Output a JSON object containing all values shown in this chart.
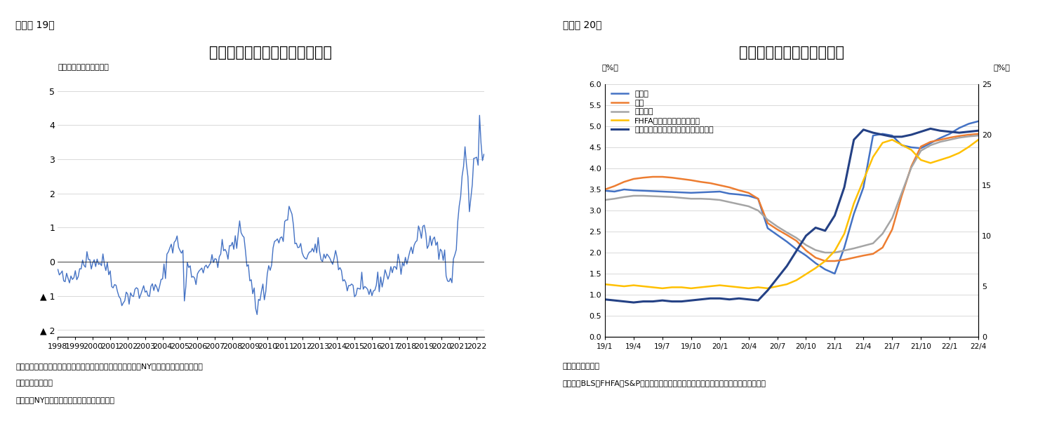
{
  "fig19": {
    "title": "世界サプライチェーン圧力指数",
    "ylabel": "（平均からの標準偏差）",
    "note1": "（注）世界の輸送コストおよび購買担当者景気指数などからNY連銀が推計した供給制約",
    "note2": "　　を図る指数。",
    "note3": "（資料）NY連銀よりニッセイ基礎研究所作成",
    "ylim": [
      -2.2,
      5.2
    ],
    "yticks": [
      -2,
      -1,
      0,
      1,
      2,
      3,
      4,
      5
    ],
    "ytick_labels": [
      "▲ 2",
      "▲ 1",
      "0",
      "1",
      "2",
      "3",
      "4",
      "5"
    ],
    "xtick_years": [
      1998,
      2000,
      2002,
      2004,
      2006,
      2008,
      2010,
      2012,
      2014,
      2016,
      2018,
      2020,
      2022
    ],
    "line_color": "#4472C4",
    "line_width": 1.0
  },
  "fig20": {
    "title": "住居費および住宅価格指数",
    "ylabel_left": "（%）",
    "ylabel_right": "（%）",
    "note1": "（注）前年同月比",
    "note2": "（資料）BLS、FHFA、S&Pダウジョーンズ・インデックスよりニッセイ基礎研究所作成",
    "ylim_left": [
      0.0,
      6.0
    ],
    "ylim_right": [
      0,
      25
    ],
    "yticks_left": [
      0.0,
      0.5,
      1.0,
      1.5,
      2.0,
      2.5,
      3.0,
      3.5,
      4.0,
      4.5,
      5.0,
      5.5,
      6.0
    ],
    "yticks_right": [
      0,
      5,
      10,
      15,
      20,
      25
    ],
    "xtick_labels": [
      "19/1",
      "19/4",
      "19/7",
      "19/10",
      "20/1",
      "20/4",
      "20/7",
      "20/10",
      "21/1",
      "21/4",
      "21/7",
      "21/10",
      "22/1",
      "22/4"
    ]
  },
  "background_color": "#FFFFFF",
  "fig19_label": "（図表 19）",
  "fig20_label": "（図表 20）"
}
